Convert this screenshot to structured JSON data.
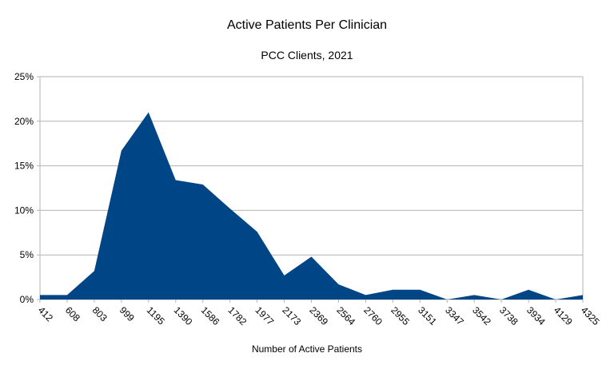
{
  "chart_data": {
    "type": "area",
    "title": "Active Patients Per Clinician",
    "subtitle": "PCC Clients, 2021",
    "xlabel": "Number of Active Patients",
    "ylabel": "",
    "categories": [
      "412",
      "608",
      "803",
      "999",
      "1195",
      "1390",
      "1586",
      "1782",
      "1977",
      "2173",
      "2369",
      "2564",
      "2760",
      "2955",
      "3151",
      "3347",
      "3542",
      "3738",
      "3934",
      "4129",
      "4325"
    ],
    "values": [
      0.5,
      0.5,
      3.2,
      16.7,
      21.0,
      13.4,
      12.9,
      10.2,
      7.6,
      2.7,
      4.8,
      1.7,
      0.5,
      1.1,
      1.1,
      0,
      0.5,
      0,
      1.1,
      0,
      0.5
    ],
    "ylim": [
      0,
      25
    ],
    "yticks": [
      "0%",
      "5%",
      "10%",
      "15%",
      "20%",
      "25%"
    ],
    "grid": true,
    "legend": "none",
    "color": "#004586"
  }
}
